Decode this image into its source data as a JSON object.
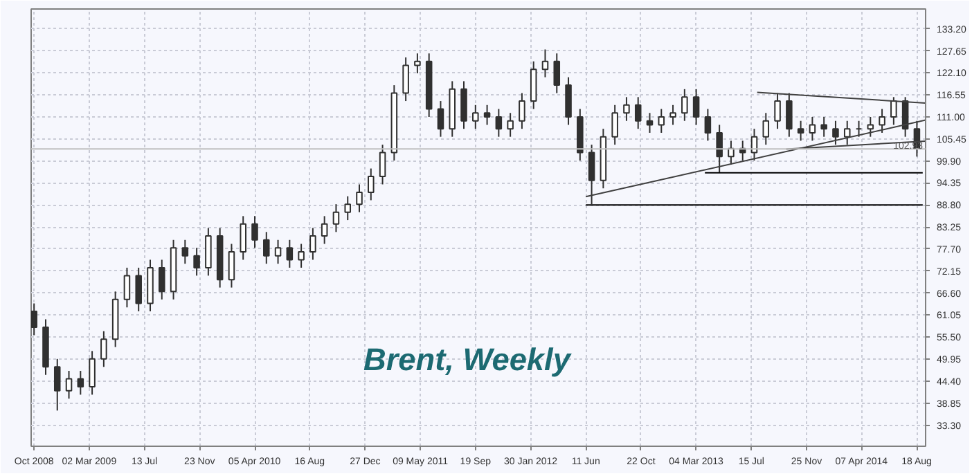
{
  "chart_data": {
    "type": "candlestick",
    "title": "Brent, Weekly",
    "color": "#303030",
    "grid": true,
    "x": [
      "2008-10-20",
      "2008-11-17",
      "2008-12-15",
      "2009-01-12",
      "2009-02-09",
      "2009-03-09",
      "2009-04-06",
      "2009-05-04",
      "2009-06-01",
      "2009-06-29",
      "2009-07-27",
      "2009-08-24",
      "2009-09-21",
      "2009-10-19",
      "2009-11-16",
      "2009-12-14",
      "2010-01-11",
      "2010-02-08",
      "2010-03-08",
      "2010-04-05",
      "2010-05-03",
      "2010-05-31",
      "2010-06-28",
      "2010-07-26",
      "2010-08-23",
      "2010-09-20",
      "2010-10-18",
      "2010-11-15",
      "2010-12-13",
      "2011-01-10",
      "2011-02-07",
      "2011-03-07",
      "2011-04-04",
      "2011-05-02",
      "2011-05-30",
      "2011-06-27",
      "2011-07-25",
      "2011-08-22",
      "2011-09-19",
      "2011-10-17",
      "2011-11-14",
      "2011-12-12",
      "2012-01-09",
      "2012-02-06",
      "2012-03-05",
      "2012-04-02",
      "2012-04-30",
      "2012-05-28",
      "2012-06-25",
      "2012-07-23",
      "2012-08-20",
      "2012-09-17",
      "2012-10-15",
      "2012-11-12",
      "2012-12-10",
      "2013-01-07",
      "2013-02-04",
      "2013-03-04",
      "2013-04-01",
      "2013-04-29",
      "2013-05-27",
      "2013-06-24",
      "2013-07-22",
      "2013-08-19",
      "2013-09-16",
      "2013-10-14",
      "2013-11-11",
      "2013-12-09",
      "2014-01-06",
      "2014-02-03",
      "2014-03-03",
      "2014-03-31",
      "2014-04-28",
      "2014-05-26",
      "2014-06-23",
      "2014-07-21",
      "2014-08-18"
    ],
    "ohlc": [
      [
        62,
        64,
        56,
        58
      ],
      [
        58,
        60,
        46,
        48
      ],
      [
        48,
        50,
        37,
        42
      ],
      [
        42,
        47,
        40,
        45
      ],
      [
        45,
        47,
        41,
        43
      ],
      [
        43,
        52,
        41,
        50
      ],
      [
        50,
        57,
        48,
        55
      ],
      [
        55,
        67,
        53,
        65
      ],
      [
        65,
        73,
        63,
        71
      ],
      [
        71,
        73,
        62,
        64
      ],
      [
        64,
        75,
        62,
        73
      ],
      [
        73,
        75,
        65,
        67
      ],
      [
        67,
        80,
        65,
        78
      ],
      [
        78,
        80,
        74,
        76
      ],
      [
        76,
        78,
        71,
        73
      ],
      [
        73,
        83,
        71,
        81
      ],
      [
        81,
        83,
        68,
        70
      ],
      [
        70,
        79,
        68,
        77
      ],
      [
        77,
        86,
        75,
        84
      ],
      [
        84,
        86,
        78,
        80
      ],
      [
        80,
        82,
        74,
        76
      ],
      [
        76,
        80,
        74,
        78
      ],
      [
        78,
        80,
        73,
        75
      ],
      [
        75,
        79,
        73,
        77
      ],
      [
        77,
        83,
        75,
        81
      ],
      [
        81,
        86,
        79,
        84
      ],
      [
        84,
        89,
        82,
        87
      ],
      [
        87,
        91,
        85,
        89
      ],
      [
        89,
        94,
        87,
        92
      ],
      [
        92,
        98,
        90,
        96
      ],
      [
        96,
        104,
        94,
        102
      ],
      [
        102,
        119,
        100,
        117
      ],
      [
        117,
        126,
        115,
        124
      ],
      [
        124,
        127,
        122,
        125
      ],
      [
        125,
        127,
        111,
        113
      ],
      [
        113,
        115,
        106,
        108
      ],
      [
        108,
        120,
        106,
        118
      ],
      [
        118,
        120,
        108,
        110
      ],
      [
        110,
        114,
        108,
        112
      ],
      [
        112,
        114,
        109,
        111
      ],
      [
        111,
        113,
        106,
        108
      ],
      [
        108,
        112,
        106,
        110
      ],
      [
        110,
        117,
        108,
        115
      ],
      [
        115,
        125,
        113,
        123
      ],
      [
        123,
        128,
        121,
        125
      ],
      [
        125,
        127,
        117,
        119
      ],
      [
        119,
        121,
        109,
        111
      ],
      [
        111,
        113,
        100,
        102
      ],
      [
        102,
        104,
        89,
        95
      ],
      [
        95,
        108,
        93,
        106
      ],
      [
        106,
        114,
        104,
        112
      ],
      [
        112,
        116,
        110,
        114
      ],
      [
        114,
        116,
        108,
        110
      ],
      [
        110,
        112,
        107,
        109
      ],
      [
        109,
        113,
        107,
        111
      ],
      [
        111,
        114,
        109,
        112
      ],
      [
        112,
        118,
        110,
        116
      ],
      [
        116,
        118,
        109,
        111
      ],
      [
        111,
        113,
        105,
        107
      ],
      [
        107,
        109,
        97,
        101
      ],
      [
        101,
        105,
        99,
        103
      ],
      [
        103,
        105,
        100,
        102
      ],
      [
        102,
        108,
        100,
        106
      ],
      [
        106,
        112,
        104,
        110
      ],
      [
        110,
        117,
        108,
        115
      ],
      [
        115,
        117,
        106,
        108
      ],
      [
        108,
        110,
        105,
        107
      ],
      [
        107,
        111,
        105,
        109
      ],
      [
        109,
        111,
        106,
        108
      ],
      [
        108,
        110,
        104,
        106
      ],
      [
        106,
        110,
        104,
        108
      ],
      [
        108,
        110,
        106,
        108
      ],
      [
        108,
        111,
        106,
        109
      ],
      [
        109,
        113,
        107,
        111
      ],
      [
        111,
        116,
        109,
        115
      ],
      [
        115,
        116,
        106,
        108
      ],
      [
        108,
        110,
        101,
        103
      ]
    ],
    "series": [
      {
        "type": "line",
        "color": "#000000",
        "x": [
          "2012-06-11",
          "2014-09-01"
        ],
        "values": [
          88.8,
          88.8
        ]
      },
      {
        "type": "line",
        "color": "#000000",
        "x": [
          "2013-03-25",
          "2014-09-01"
        ],
        "values": [
          96.9,
          96.9
        ]
      },
      {
        "type": "line",
        "color": "#404040",
        "x": [
          "2012-06-11",
          "2014-09-08"
        ],
        "values": [
          90.9,
          110.2
        ]
      },
      {
        "type": "line",
        "color": "#404040",
        "x": [
          "2013-07-29",
          "2014-09-08"
        ],
        "values": [
          117.2,
          114.5
        ]
      },
      {
        "type": "line",
        "color": "#404040",
        "x": [
          "2013-10-07",
          "2014-09-08"
        ],
        "values": [
          102.9,
          104.9
        ]
      }
    ],
    "ref_lines": [
      {
        "axis": "y",
        "value": 102.93,
        "label": "102.93",
        "color": "#c0c0c0"
      }
    ],
    "xlim": [
      "2008-10-13",
      "2014-09-08"
    ],
    "xticks": [
      {
        "value": "2008-10-20",
        "label": "Oct 2008"
      },
      {
        "value": "2009-03-02",
        "label": "02 Mar 2009"
      },
      {
        "value": "2009-07-13",
        "label": "13 Jul"
      },
      {
        "value": "2009-11-23",
        "label": "23 Nov"
      },
      {
        "value": "2010-04-05",
        "label": "05 Apr 2010"
      },
      {
        "value": "2010-08-16",
        "label": "16 Aug"
      },
      {
        "value": "2010-12-27",
        "label": "27 Dec"
      },
      {
        "value": "2011-05-09",
        "label": "09 May 2011"
      },
      {
        "value": "2011-09-19",
        "label": "19 Sep"
      },
      {
        "value": "2012-01-30",
        "label": "30 Jan 2012"
      },
      {
        "value": "2012-06-11",
        "label": "11 Jun"
      },
      {
        "value": "2012-10-22",
        "label": "22 Oct"
      },
      {
        "value": "2013-03-04",
        "label": "04 Mar 2013"
      },
      {
        "value": "2013-07-15",
        "label": "15 Jul"
      },
      {
        "value": "2013-11-25",
        "label": "25 Nov"
      },
      {
        "value": "2014-04-07",
        "label": "07 Apr 2014"
      },
      {
        "value": "2014-08-18",
        "label": "18 Aug"
      }
    ],
    "ylim": [
      28,
      138.2
    ],
    "yticks": [
      {
        "value": 33.3,
        "label": "33.30"
      },
      {
        "value": 38.85,
        "label": "38.85"
      },
      {
        "value": 44.4,
        "label": "44.40"
      },
      {
        "value": 49.95,
        "label": "49.95"
      },
      {
        "value": 55.5,
        "label": "55.50"
      },
      {
        "value": 61.05,
        "label": "61.05"
      },
      {
        "value": 66.6,
        "label": "66.60"
      },
      {
        "value": 72.15,
        "label": "72.15"
      },
      {
        "value": 77.7,
        "label": "77.70"
      },
      {
        "value": 83.25,
        "label": "83.25"
      },
      {
        "value": 88.8,
        "label": "88.80"
      },
      {
        "value": 94.35,
        "label": "94.35"
      },
      {
        "value": 99.9,
        "label": "99.90"
      },
      {
        "value": 105.45,
        "label": "105.45"
      },
      {
        "value": 111.0,
        "label": "111.00"
      },
      {
        "value": 116.55,
        "label": "116.55"
      },
      {
        "value": 122.1,
        "label": "122.10"
      },
      {
        "value": 127.65,
        "label": "127.65"
      },
      {
        "value": 133.2,
        "label": "133.20"
      }
    ]
  }
}
